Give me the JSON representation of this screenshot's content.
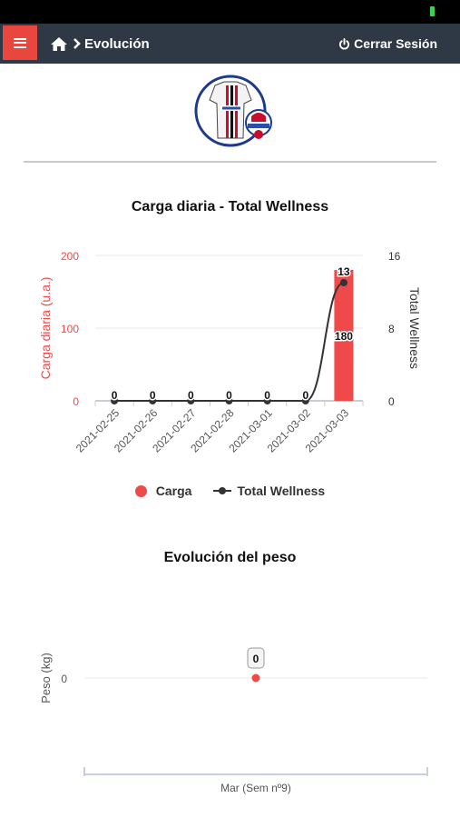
{
  "header": {
    "title": "Evolución",
    "logout_label": "Cerrar Sesión"
  },
  "colors": {
    "navbar": "#2e3945",
    "menu_button": "#e8463e",
    "carga": "#f0494a",
    "wellness": "#333333"
  },
  "icons": {
    "menu": "hamburger-icon",
    "home": "home-icon",
    "separator": "chevron-right-icon",
    "logout": "power-icon"
  },
  "chart_data": [
    {
      "type": "bar",
      "title": "Carga diaria - Total Wellness",
      "categories": [
        "2021-02-25",
        "2021-02-26",
        "2021-02-27",
        "2021-02-28",
        "2021-03-01",
        "2021-03-02",
        "2021-03-03"
      ],
      "series": [
        {
          "name": "Carga",
          "type": "bar",
          "axis": "left",
          "values": [
            0,
            0,
            0,
            0,
            0,
            0,
            180
          ]
        },
        {
          "name": "Total Wellness",
          "type": "line",
          "axis": "right",
          "values": [
            0,
            0,
            0,
            0,
            0,
            0,
            13
          ]
        }
      ],
      "ylabel": "Carga diaria (u.a.)",
      "y2label": "Total Wellness",
      "ylim": [
        0,
        200
      ],
      "yticks": [
        0,
        100,
        200
      ],
      "y2lim": [
        0,
        16
      ],
      "y2ticks": [
        0,
        8,
        16
      ],
      "legend": "bottom"
    },
    {
      "type": "scatter",
      "title": "Evolución del peso",
      "categories": [
        "Mar (Sem nº9)"
      ],
      "series": [
        {
          "values": [
            0
          ]
        }
      ],
      "ylabel": "Peso (kg)",
      "yticks": [
        0
      ]
    }
  ]
}
